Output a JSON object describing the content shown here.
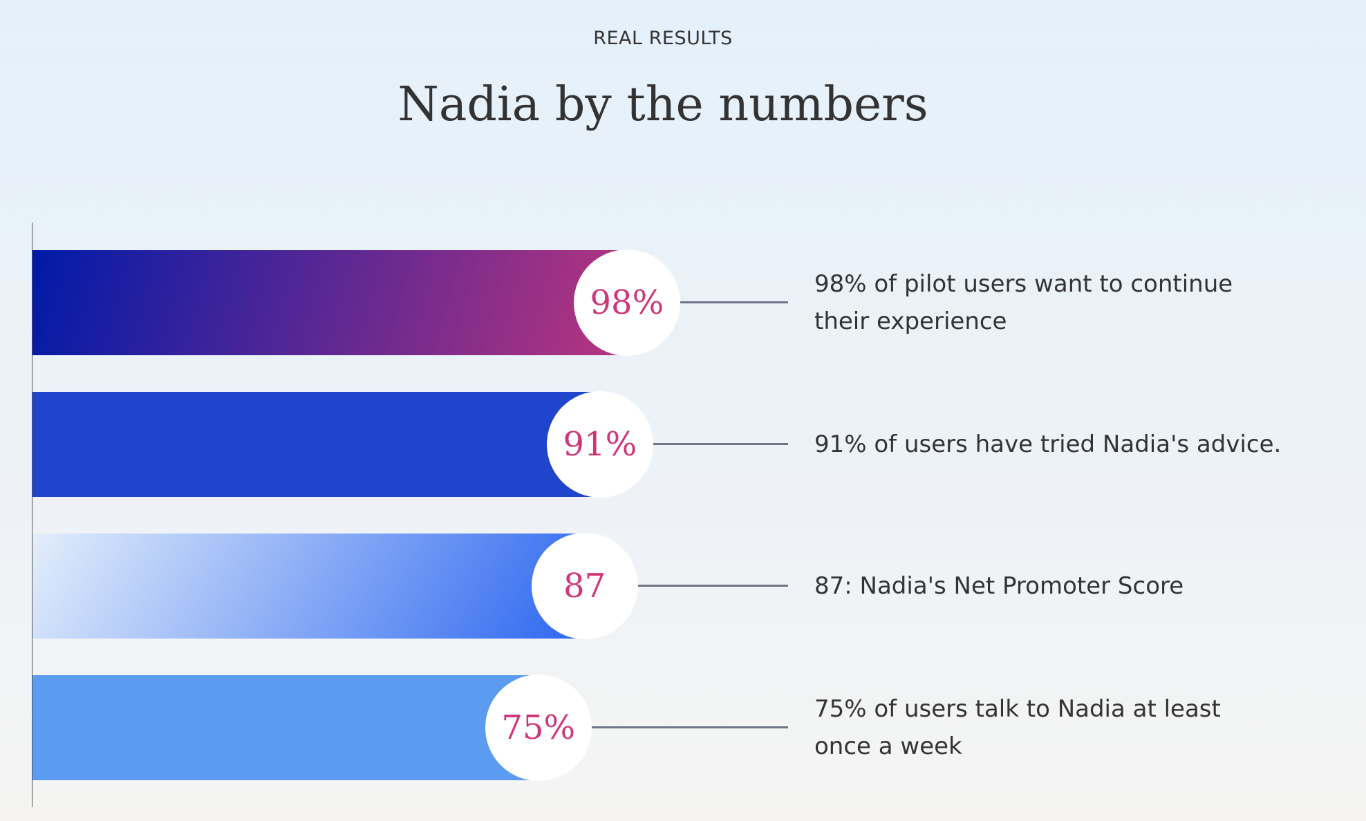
{
  "header": {
    "eyebrow": "REAL RESULTS",
    "title": "Nadia by the numbers"
  },
  "chart_data": {
    "type": "bar",
    "orientation": "horizontal",
    "title": "Nadia by the numbers",
    "categories": [
      "98% of pilot users want to continue their experience",
      "91% of users have tried Nadia's advice.",
      "87: Nadia's Net Promoter Score",
      "75% of users talk to Nadia at least once a week"
    ],
    "values": [
      98,
      91,
      87,
      75
    ],
    "labels": [
      "98%",
      "91%",
      "87",
      "75%"
    ],
    "colors": [
      {
        "from": "#001aa8",
        "to": "#b8357e"
      },
      {
        "from": "#1f45cc",
        "to": "#1f45cc"
      },
      {
        "from": "#e3eefb",
        "to": "#2d67f0"
      },
      {
        "from": "#5b9cf0",
        "to": "#5b9cf0"
      }
    ],
    "label_color": "#d0357a"
  }
}
